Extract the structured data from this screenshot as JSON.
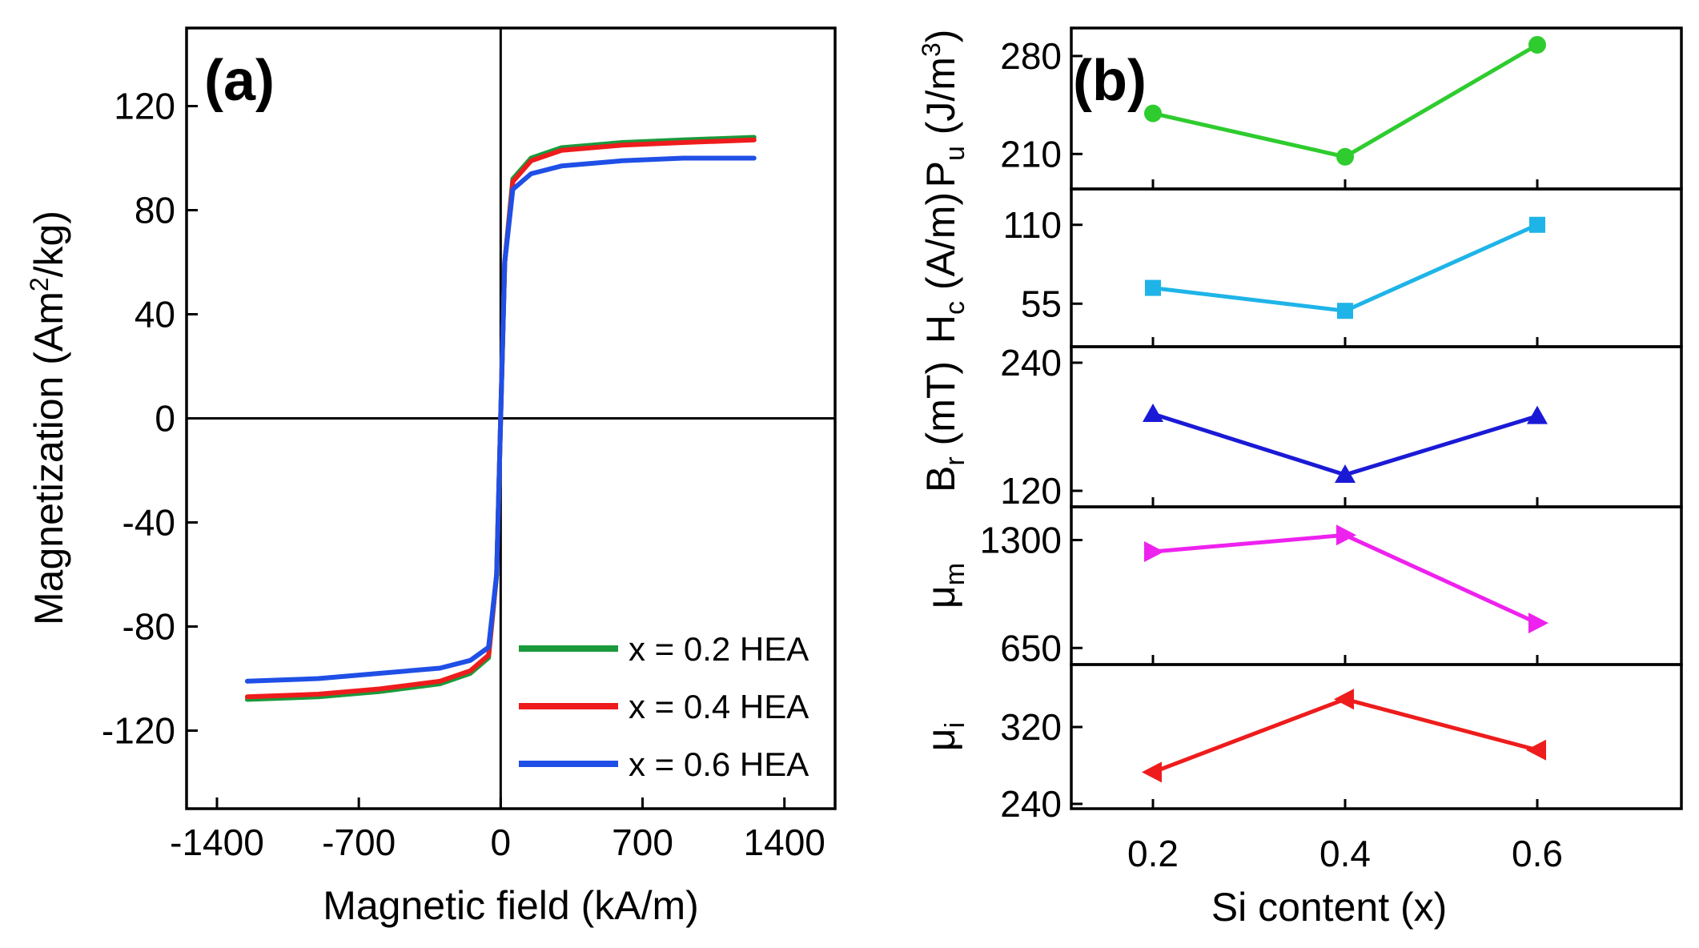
{
  "chart_data": [
    {
      "type": "line",
      "panel": "(a)",
      "xlabel": "Magnetic field  (kA/m)",
      "ylabel": "Magnetization  (Am²/kg)",
      "ylabel_main": "Magnetization  (Am",
      "ylabel_sup": "2",
      "ylabel_tail": "/kg)",
      "xlim": [
        -1550,
        1650
      ],
      "ylim": [
        -150,
        150
      ],
      "xticks": [
        -1400,
        -700,
        0,
        700,
        1400
      ],
      "yticks": [
        -120,
        -80,
        -40,
        0,
        40,
        80,
        120
      ],
      "legend_position": "bottom-right",
      "series": [
        {
          "name": "x = 0.2 HEA",
          "color": "#1a9a3c",
          "x": [
            -1250,
            -900,
            -600,
            -300,
            -150,
            -60,
            -20,
            0,
            20,
            60,
            150,
            300,
            600,
            900,
            1250
          ],
          "y": [
            -108,
            -107,
            -105,
            -102,
            -98,
            -92,
            -60,
            0,
            60,
            92,
            100,
            104,
            106,
            107,
            108
          ]
        },
        {
          "name": "x = 0.4 HEA",
          "color": "#ee1c1c",
          "x": [
            -1250,
            -900,
            -600,
            -300,
            -150,
            -60,
            -20,
            0,
            20,
            60,
            150,
            300,
            600,
            900,
            1250
          ],
          "y": [
            -107,
            -106,
            -104,
            -101,
            -97,
            -91,
            -60,
            0,
            60,
            91,
            99,
            103,
            105,
            106,
            107
          ]
        },
        {
          "name": "x = 0.6 HEA",
          "color": "#1f4fe6",
          "x": [
            -1250,
            -900,
            -600,
            -300,
            -150,
            -60,
            -20,
            0,
            20,
            60,
            150,
            300,
            600,
            900,
            1250
          ],
          "y": [
            -101,
            -100,
            -98,
            -96,
            -93,
            -88,
            -60,
            0,
            60,
            88,
            94,
            97,
            99,
            100,
            100
          ]
        }
      ]
    },
    {
      "type": "line",
      "panel": "(b)",
      "xlabel": "Si content  (x)",
      "x": [
        0.2,
        0.4,
        0.6
      ],
      "xticks": [
        "0.2",
        "0.4",
        "0.6"
      ],
      "xlim": [
        0.115,
        0.75
      ],
      "subplots": [
        {
          "label_parts": [
            "P",
            "u",
            " (J/m",
            "3",
            ")"
          ],
          "ylabel": "Pu (J/m³)",
          "ylim": [
            185,
            300
          ],
          "yticks": [
            210,
            280
          ],
          "values": [
            239,
            208,
            288
          ],
          "color": "#2ecc2e",
          "marker": "circle"
        },
        {
          "label_parts": [
            "H",
            "c",
            " (A/m)"
          ],
          "ylabel": "Hc (A/m)",
          "ylim": [
            25,
            135
          ],
          "yticks": [
            55,
            110
          ],
          "values": [
            66,
            50,
            110
          ],
          "color": "#1eb4e8",
          "marker": "square"
        },
        {
          "label_parts": [
            "B",
            "r",
            "  (mT)"
          ],
          "ylabel": "Br (mT)",
          "ylim": [
            105,
            255
          ],
          "yticks": [
            120,
            240
          ],
          "values": [
            192,
            135,
            190
          ],
          "color": "#1a1ad6",
          "marker": "triangle-up"
        },
        {
          "label_parts": [
            "μ",
            "m",
            ""
          ],
          "ylabel": "μm",
          "ylim": [
            550,
            1500
          ],
          "yticks": [
            650,
            1300
          ],
          "values": [
            1230,
            1330,
            800
          ],
          "color": "#ee22ee",
          "marker": "triangle-right"
        },
        {
          "label_parts": [
            "μ",
            "i",
            ""
          ],
          "ylabel": "μi",
          "ylim": [
            235,
            385
          ],
          "yticks": [
            240,
            320
          ],
          "values": [
            273,
            349,
            296
          ],
          "color": "#ee1c1c",
          "marker": "triangle-left"
        }
      ]
    }
  ]
}
